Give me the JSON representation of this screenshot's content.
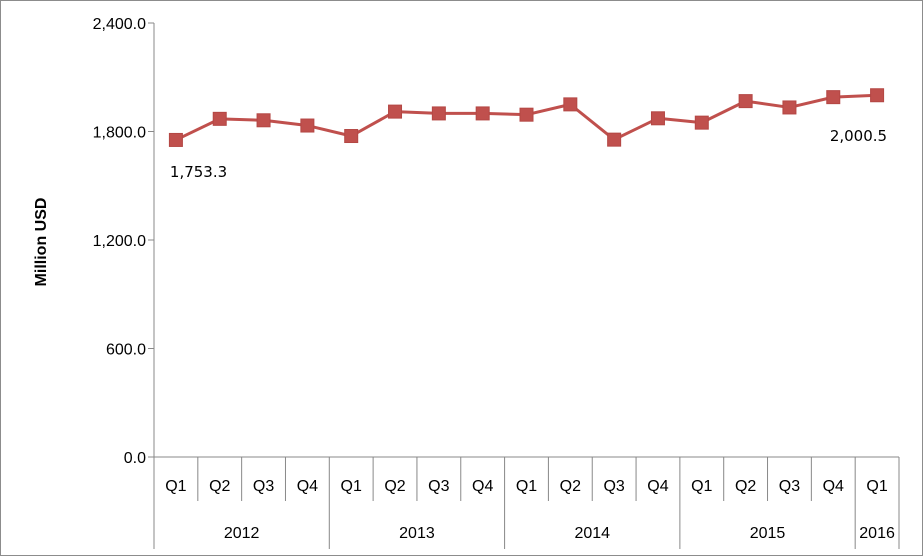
{
  "chart_data": {
    "type": "line",
    "ylabel": "Million USD",
    "ylim": [
      0,
      2400
    ],
    "yticks": [
      "0.0",
      "600.0",
      "1,200.0",
      "1,800.0",
      "2,400.0"
    ],
    "ytick_values": [
      0,
      600,
      1200,
      1800,
      2400
    ],
    "quarters": [
      "Q1",
      "Q2",
      "Q3",
      "Q4",
      "Q1",
      "Q2",
      "Q3",
      "Q4",
      "Q1",
      "Q2",
      "Q3",
      "Q4",
      "Q1",
      "Q2",
      "Q3",
      "Q4",
      "Q1"
    ],
    "years": [
      {
        "label": "2012",
        "quarters": 4
      },
      {
        "label": "2013",
        "quarters": 4
      },
      {
        "label": "2014",
        "quarters": 4
      },
      {
        "label": "2015",
        "quarters": 4
      },
      {
        "label": "2016",
        "quarters": 1
      }
    ],
    "series": [
      {
        "values": [
          1753.3,
          1870,
          1862,
          1833,
          1775,
          1910,
          1900,
          1900,
          1893,
          1950,
          1755,
          1873,
          1849,
          1968,
          1933,
          1990,
          2000.5
        ],
        "color": "#c0504d"
      }
    ],
    "data_labels": [
      {
        "index": 0,
        "text": "1,753.3"
      },
      {
        "index": 16,
        "text": "2,000.5"
      }
    ],
    "grid": false,
    "legend": "none"
  }
}
